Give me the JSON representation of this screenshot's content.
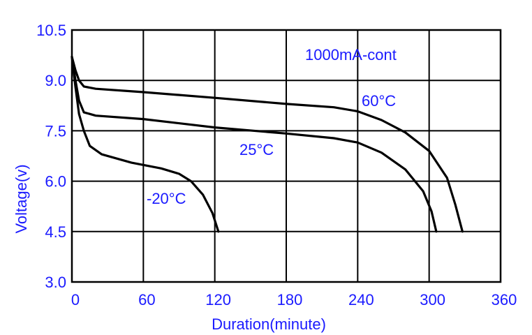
{
  "chart_data": {
    "type": "line",
    "title": "",
    "xlabel": "Duration(minute)",
    "ylabel": "Voltage(v)",
    "xlim": [
      0,
      360
    ],
    "ylim": [
      3.0,
      10.5
    ],
    "grid": true,
    "x_ticks": [
      0,
      60,
      120,
      180,
      240,
      300,
      360
    ],
    "x_tick_labels": [
      "0",
      "60",
      "120",
      "180",
      "240",
      "300",
      "360"
    ],
    "y_ticks": [
      3.0,
      4.5,
      6.0,
      7.5,
      9.0,
      10.5
    ],
    "y_tick_labels": [
      "3.0",
      "4.5",
      "6.0",
      "7.5",
      "9.0",
      "10.5"
    ],
    "annotations": [
      "1000mA-cont"
    ],
    "series": [
      {
        "name": "60°C",
        "points": [
          [
            0,
            9.7
          ],
          [
            3,
            9.3
          ],
          [
            6,
            9.0
          ],
          [
            10,
            8.82
          ],
          [
            20,
            8.75
          ],
          [
            60,
            8.65
          ],
          [
            120,
            8.48
          ],
          [
            180,
            8.3
          ],
          [
            220,
            8.2
          ],
          [
            240,
            8.08
          ],
          [
            260,
            7.82
          ],
          [
            280,
            7.45
          ],
          [
            300,
            6.9
          ],
          [
            315,
            6.1
          ],
          [
            322,
            5.3
          ],
          [
            328,
            4.5
          ]
        ]
      },
      {
        "name": "25°C",
        "points": [
          [
            0,
            9.7
          ],
          [
            3,
            9.0
          ],
          [
            6,
            8.4
          ],
          [
            10,
            8.05
          ],
          [
            20,
            7.95
          ],
          [
            60,
            7.85
          ],
          [
            120,
            7.6
          ],
          [
            180,
            7.42
          ],
          [
            220,
            7.28
          ],
          [
            240,
            7.15
          ],
          [
            260,
            6.85
          ],
          [
            280,
            6.35
          ],
          [
            295,
            5.7
          ],
          [
            302,
            5.1
          ],
          [
            306,
            4.5
          ]
        ]
      },
      {
        "name": "-20°C",
        "points": [
          [
            0,
            9.7
          ],
          [
            3,
            8.8
          ],
          [
            6,
            8.0
          ],
          [
            10,
            7.5
          ],
          [
            15,
            7.05
          ],
          [
            25,
            6.8
          ],
          [
            50,
            6.55
          ],
          [
            75,
            6.38
          ],
          [
            90,
            6.22
          ],
          [
            100,
            6.0
          ],
          [
            110,
            5.6
          ],
          [
            118,
            5.05
          ],
          [
            123,
            4.5
          ]
        ]
      }
    ]
  }
}
